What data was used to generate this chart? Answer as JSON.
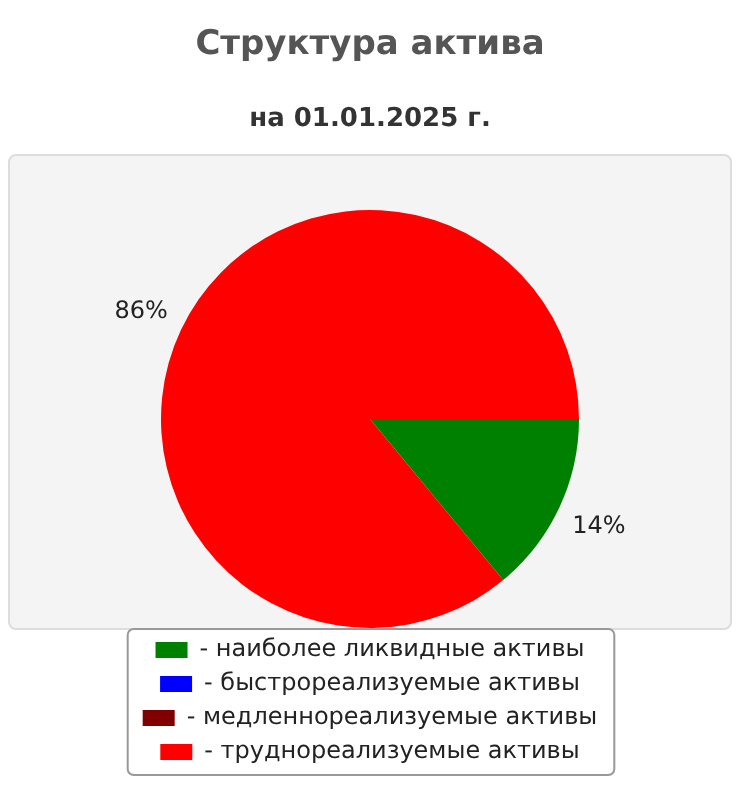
{
  "chart_data": {
    "type": "pie",
    "title": "Структура актива",
    "subtitle": "на 01.01.2025 г.",
    "categories": [
      "- наиболее ликвидные активы",
      "- быстрореализуемые активы",
      "- медленнореализуемые активы",
      "- труднореализуемые активы"
    ],
    "values": [
      14,
      0,
      0,
      86
    ],
    "colors": [
      "#008000",
      "#0000ff",
      "#800000",
      "#ff0000"
    ],
    "value_labels": [
      "14%",
      null,
      null,
      "86%"
    ],
    "legend": "bottom"
  }
}
